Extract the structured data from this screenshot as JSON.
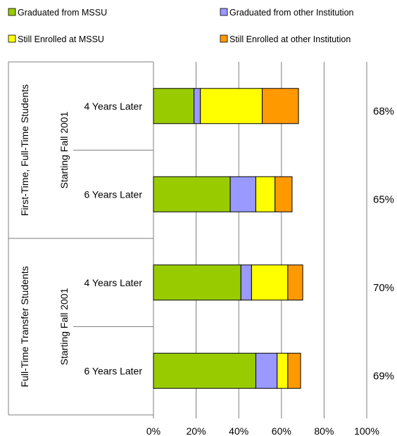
{
  "chart_data": {
    "type": "bar",
    "orientation": "horizontal",
    "stacked": true,
    "xlim": [
      0,
      100
    ],
    "x_ticks": [
      "0%",
      "20%",
      "40%",
      "60%",
      "80%",
      "100%"
    ],
    "grid": true,
    "legend_position": "top",
    "categories": [
      "4 Years Later",
      "6 Years Later",
      "4 Years Later",
      "6 Years Later"
    ],
    "groups": [
      {
        "line1": "First-Time, Full-Time Students",
        "line2": "Starting Fall 2001"
      },
      {
        "line1": "Full-Time Transfer Students",
        "line2": "Starting Fall 2001"
      }
    ],
    "series": [
      {
        "name": "Graduated from MSSU",
        "color": "#99cc00",
        "values": [
          19,
          36,
          41,
          48
        ]
      },
      {
        "name": "Graduated from other Institution",
        "color": "#9999ff",
        "values": [
          3,
          12,
          5,
          10
        ]
      },
      {
        "name": "Still Enrolled at MSSU",
        "color": "#ffff00",
        "values": [
          29,
          9,
          17,
          5
        ]
      },
      {
        "name": "Still Enrolled at other Institution",
        "color": "#ff9900",
        "values": [
          17,
          8,
          7,
          6
        ]
      }
    ],
    "totals": [
      "68%",
      "65%",
      "70%",
      "69%"
    ]
  }
}
